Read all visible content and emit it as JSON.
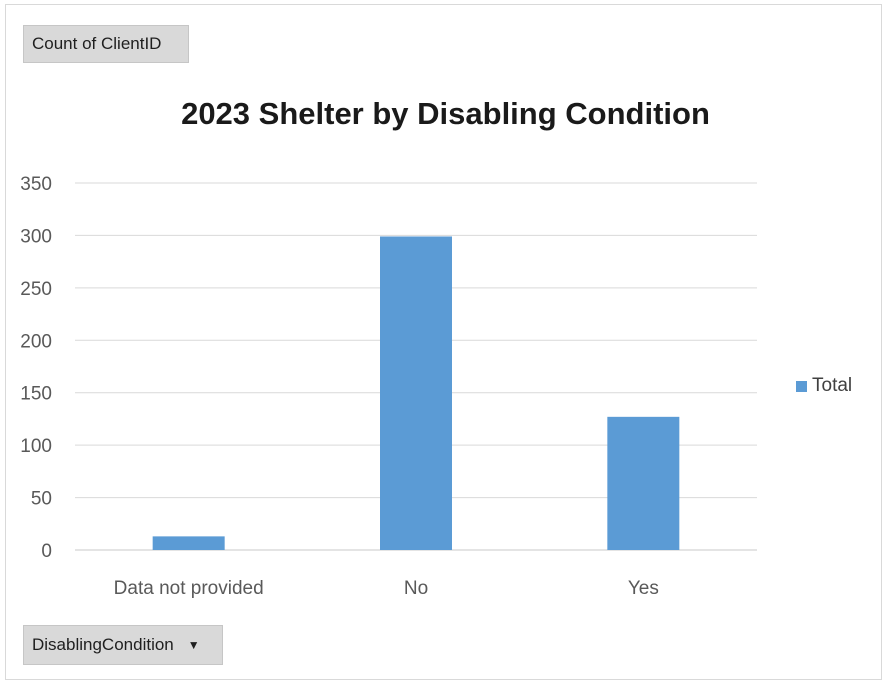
{
  "value_field": {
    "label": "Count of ClientID"
  },
  "axis_field": {
    "label": "DisablingCondition",
    "dropdown_icon": "triangle-down-icon"
  },
  "chart_data": {
    "type": "bar",
    "title": "2023 Shelter by Disabling Condition",
    "categories": [
      "Data not provided",
      "No",
      "Yes"
    ],
    "series": [
      {
        "name": "Total",
        "values": [
          13,
          299,
          127
        ],
        "color": "#5b9bd5"
      }
    ],
    "ylim": [
      0,
      350
    ],
    "yticks": [
      0,
      50,
      100,
      150,
      200,
      250,
      300,
      350
    ],
    "grid": true,
    "legend_position": "right"
  }
}
